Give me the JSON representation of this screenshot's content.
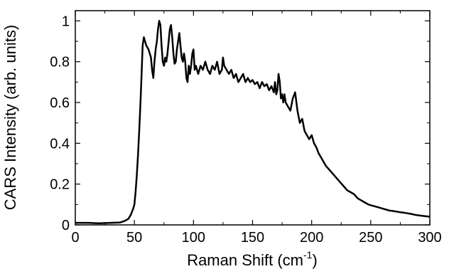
{
  "chart_data": {
    "type": "line",
    "xlabel_prefix": "Raman Shift (cm",
    "xlabel_sup": "-1",
    "xlabel_suffix": ")",
    "ylabel": "CARS Intensity (arb. units)",
    "xlim": [
      0,
      300
    ],
    "ylim": [
      0,
      1.05
    ],
    "x_ticks": [
      0,
      50,
      100,
      150,
      200,
      250,
      300
    ],
    "x_tick_labels": [
      "0",
      "50",
      "100",
      "150",
      "200",
      "250",
      "300"
    ],
    "y_ticks": [
      0,
      0.2,
      0.4,
      0.6,
      0.8,
      1
    ],
    "y_tick_labels": [
      "0",
      "0.2",
      "0.4",
      "0.6",
      "0.8",
      "1"
    ],
    "grid": false,
    "line_color": "#000000",
    "series": [
      {
        "x": [
          0,
          10,
          20,
          30,
          38,
          42,
          45,
          47,
          49,
          50,
          51,
          52,
          53,
          54,
          55,
          56,
          57,
          58,
          60,
          62,
          63,
          64,
          65,
          66,
          67,
          68,
          69,
          70,
          71,
          72,
          73,
          74,
          75,
          76,
          77,
          78,
          79,
          80,
          81,
          82,
          83,
          84,
          85,
          86,
          87,
          88,
          89,
          90,
          91,
          92,
          93,
          94,
          95,
          96,
          97,
          98,
          99,
          100,
          101,
          102,
          104,
          106,
          108,
          110,
          112,
          114,
          116,
          118,
          120,
          122,
          124,
          125,
          126,
          128,
          130,
          132,
          134,
          136,
          138,
          140,
          142,
          144,
          146,
          148,
          150,
          152,
          154,
          156,
          158,
          160,
          162,
          164,
          166,
          168,
          169,
          170,
          171,
          172,
          173,
          174,
          175,
          176,
          177,
          178,
          180,
          182,
          184,
          186,
          188,
          190,
          192,
          194,
          196,
          198,
          200,
          202,
          204,
          206,
          208,
          210,
          212,
          215,
          218,
          221,
          224,
          227,
          230,
          233,
          236,
          239,
          242,
          245,
          248,
          251,
          254,
          257,
          260,
          263,
          266,
          269,
          272,
          275,
          278,
          281,
          284,
          287,
          290,
          293,
          296,
          300
        ],
        "y": [
          0.01,
          0.01,
          0.008,
          0.01,
          0.012,
          0.02,
          0.03,
          0.05,
          0.08,
          0.1,
          0.16,
          0.24,
          0.34,
          0.45,
          0.58,
          0.72,
          0.88,
          0.92,
          0.88,
          0.86,
          0.84,
          0.82,
          0.76,
          0.72,
          0.8,
          0.86,
          0.9,
          0.96,
          1.0,
          0.98,
          0.88,
          0.8,
          0.78,
          0.82,
          0.8,
          0.84,
          0.9,
          0.96,
          0.98,
          0.92,
          0.84,
          0.79,
          0.8,
          0.86,
          0.9,
          0.94,
          0.88,
          0.82,
          0.8,
          0.84,
          0.8,
          0.72,
          0.7,
          0.78,
          0.74,
          0.78,
          0.84,
          0.86,
          0.76,
          0.78,
          0.74,
          0.78,
          0.76,
          0.8,
          0.76,
          0.74,
          0.78,
          0.76,
          0.8,
          0.74,
          0.76,
          0.82,
          0.78,
          0.76,
          0.74,
          0.76,
          0.72,
          0.74,
          0.7,
          0.72,
          0.74,
          0.7,
          0.72,
          0.7,
          0.71,
          0.69,
          0.7,
          0.67,
          0.7,
          0.68,
          0.69,
          0.66,
          0.68,
          0.65,
          0.7,
          0.64,
          0.66,
          0.74,
          0.7,
          0.62,
          0.64,
          0.6,
          0.64,
          0.6,
          0.58,
          0.56,
          0.62,
          0.65,
          0.56,
          0.5,
          0.52,
          0.46,
          0.44,
          0.42,
          0.44,
          0.4,
          0.38,
          0.35,
          0.33,
          0.31,
          0.29,
          0.27,
          0.25,
          0.23,
          0.21,
          0.19,
          0.17,
          0.16,
          0.15,
          0.13,
          0.12,
          0.11,
          0.1,
          0.095,
          0.09,
          0.085,
          0.08,
          0.075,
          0.07,
          0.068,
          0.065,
          0.062,
          0.06,
          0.057,
          0.054,
          0.05,
          0.047,
          0.045,
          0.043,
          0.04
        ]
      }
    ]
  }
}
